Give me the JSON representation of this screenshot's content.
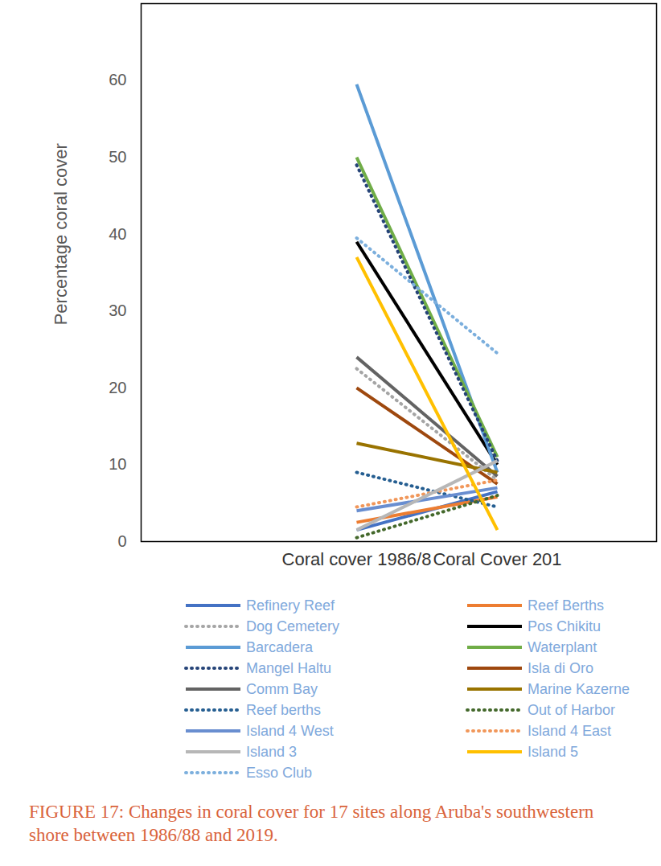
{
  "chart_data": {
    "type": "line",
    "caption": "FIGURE 17: Changes in coral cover for 17 sites along Aruba's southwestern shore between 1986/88 and 2019.",
    "ylabel": "Percentage coral cover",
    "categories": [
      "Coral cover 1986/8",
      "Coral Cover 201"
    ],
    "ylim": [
      0,
      70
    ],
    "yticks": [
      0,
      10,
      20,
      30,
      40,
      50,
      60
    ],
    "legend": "bottom",
    "series": [
      {
        "name": "Refinery Reef",
        "color": "#4472c4",
        "line_style": "solid",
        "values": [
          1.5,
          6.5
        ]
      },
      {
        "name": "Reef Berths",
        "color": "#ed7d31",
        "line_style": "solid",
        "values": [
          2.5,
          5.8
        ]
      },
      {
        "name": "Dog Cemetery",
        "color": "#a5a5a5",
        "line_style": "dotted",
        "values": [
          22.5,
          8
        ]
      },
      {
        "name": "Pos Chikitu",
        "color": "#000000",
        "line_style": "solid",
        "values": [
          39,
          10
        ]
      },
      {
        "name": "Barcadera",
        "color": "#5b9bd5",
        "line_style": "solid",
        "values": [
          59.5,
          9
        ]
      },
      {
        "name": "Waterplant",
        "color": "#70ad47",
        "line_style": "solid",
        "values": [
          50,
          11
        ]
      },
      {
        "name": "Mangel Haltu",
        "color": "#264478",
        "line_style": "dotted",
        "values": [
          49,
          10.5
        ]
      },
      {
        "name": "Isla di Oro",
        "color": "#9e480e",
        "line_style": "solid",
        "values": [
          20,
          7.5
        ]
      },
      {
        "name": "Comm Bay",
        "color": "#636363",
        "line_style": "solid",
        "values": [
          24,
          8.5
        ]
      },
      {
        "name": "Marine Kazerne",
        "color": "#997300",
        "line_style": "solid",
        "values": [
          12.8,
          9
        ]
      },
      {
        "name": "Reef berths",
        "color": "#255e91",
        "line_style": "dotted",
        "values": [
          9,
          4.5
        ]
      },
      {
        "name": "Out of Harbor",
        "color": "#43682b",
        "line_style": "dotted",
        "values": [
          0.5,
          6
        ]
      },
      {
        "name": "Island 4 West",
        "color": "#698ed0",
        "line_style": "solid",
        "values": [
          4,
          7
        ]
      },
      {
        "name": "Island 4 East",
        "color": "#f1975a",
        "line_style": "dotted",
        "values": [
          4.5,
          8
        ]
      },
      {
        "name": "Island 3",
        "color": "#b7b7b7",
        "line_style": "solid",
        "values": [
          1.5,
          10.5
        ]
      },
      {
        "name": "Island 5",
        "color": "#ffc000",
        "line_style": "solid",
        "values": [
          37,
          1.5
        ]
      },
      {
        "name": "Esso Club",
        "color": "#7cafdd",
        "line_style": "dotted",
        "values": [
          39.5,
          24.5
        ]
      }
    ]
  }
}
